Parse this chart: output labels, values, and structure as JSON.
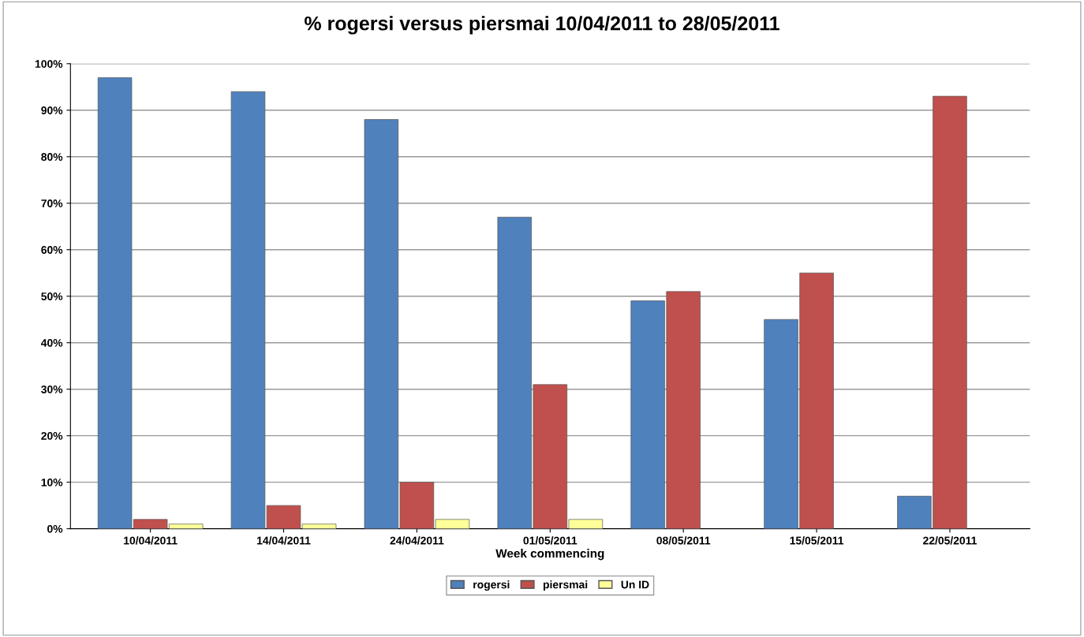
{
  "chart_data": {
    "type": "bar",
    "title": "% rogersi versus piersmai 10/04/2011 to 28/05/2011",
    "xlabel": "Week commencing",
    "categories": [
      "10/04/2011",
      "14/04/2011",
      "24/04/2011",
      "01/05/2011",
      "08/05/2011",
      "15/05/2011",
      "22/05/2011"
    ],
    "series": [
      {
        "name": "rogersi",
        "color": "#4f81bd",
        "values": [
          97,
          94,
          88,
          67,
          49,
          45,
          7
        ]
      },
      {
        "name": "piersmai",
        "color": "#c0504d",
        "values": [
          2,
          5,
          10,
          31,
          51,
          55,
          93
        ]
      },
      {
        "name": "Un ID",
        "color": "#ffff99",
        "values": [
          1,
          1,
          2,
          2,
          null,
          null,
          null
        ]
      }
    ],
    "ylim": [
      0,
      100
    ],
    "yticks": [
      {
        "value": 0,
        "label": "0%"
      },
      {
        "value": 10,
        "label": "10%"
      },
      {
        "value": 20,
        "label": "20%"
      },
      {
        "value": 30,
        "label": "30%"
      },
      {
        "value": 40,
        "label": "40%"
      },
      {
        "value": 50,
        "label": "50%"
      },
      {
        "value": 60,
        "label": "60%"
      },
      {
        "value": 70,
        "label": "70%"
      },
      {
        "value": 80,
        "label": "80%"
      },
      {
        "value": 90,
        "label": "90%"
      },
      {
        "value": 100,
        "label": "100%"
      }
    ],
    "grid": "y",
    "legend": "bottom"
  }
}
